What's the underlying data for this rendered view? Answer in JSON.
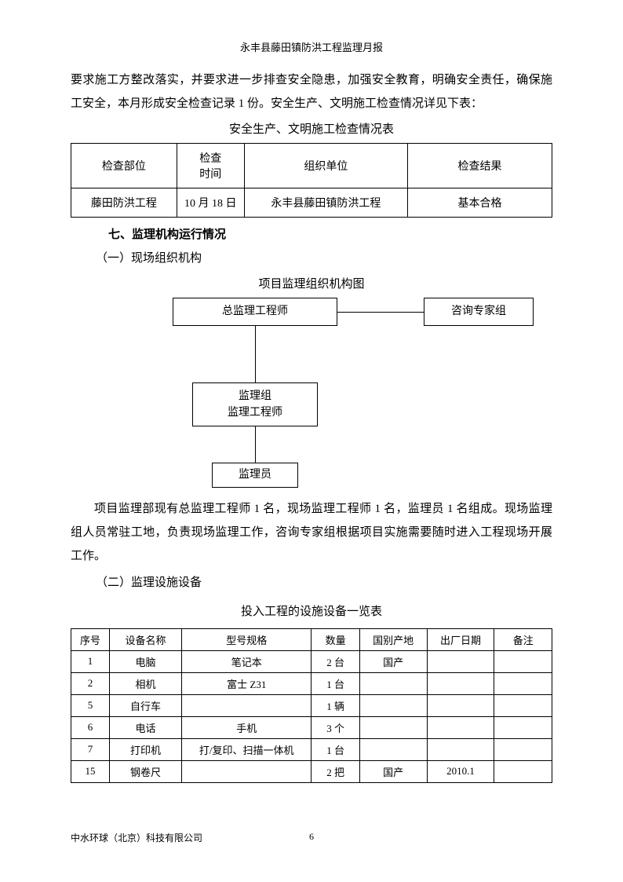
{
  "header": "永丰县藤田镇防洪工程监理月报",
  "intro_para": "要求施工方整改落实，并要求进一步排查安全隐患，加强安全教育，明确安全责任，确保施工安全，本月形成安全检查记录 1 份。安全生产、文明施工检查情况详见下表：",
  "inspection_table": {
    "title": "安全生产、文明施工检查情况表",
    "headers": [
      "检查部位",
      "检查\n时间",
      "组织单位",
      "检查结果"
    ],
    "row": [
      "藤田防洪工程",
      "10 月 18 日",
      "永丰县藤田镇防洪工程",
      "基本合格"
    ],
    "col_widths": [
      "22%",
      "14%",
      "34%",
      "30%"
    ]
  },
  "section7": {
    "heading": "七、监理机构运行情况",
    "sub1": "（一）现场组织机构",
    "sub2": "（二）监理设施设备"
  },
  "org_chart": {
    "title": "项目监理组织机构图",
    "nodes": {
      "chief": "总监理工程师",
      "expert": "咨询专家组",
      "group_l1": "监理组",
      "group_l2": "监理工程师",
      "staff": "监理员"
    }
  },
  "org_para": "项目监理部现有总监理工程师 1 名，现场监理工程师 1 名，监理员 1 名组成。现场监理组人员常驻工地，负责现场监理工作，咨询专家组根据项目实施需要随时进入工程现场开展工作。",
  "equipment_table": {
    "title": "投入工程的设施设备一览表",
    "headers": [
      "序号",
      "设备名称",
      "型号规格",
      "数量",
      "国别产地",
      "出厂日期",
      "备注"
    ],
    "rows": [
      [
        "1",
        "电脑",
        "笔记本",
        "2 台",
        "国产",
        "",
        ""
      ],
      [
        "2",
        "相机",
        "富士 Z31",
        "1 台",
        "",
        "",
        ""
      ],
      [
        "5",
        "自行车",
        "",
        "1 辆",
        "",
        "",
        ""
      ],
      [
        "6",
        "电话",
        "手机",
        "3 个",
        "",
        "",
        ""
      ],
      [
        "7",
        "打印机",
        "打/复印、扫描一体机",
        "1 台",
        "",
        "",
        ""
      ],
      [
        "15",
        "钢卷尺",
        "",
        "2 把",
        "国产",
        "2010.1",
        ""
      ]
    ],
    "col_widths": [
      "8%",
      "15%",
      "27%",
      "10%",
      "14%",
      "14%",
      "12%"
    ]
  },
  "footer": {
    "company": "中水环球（北京）科技有限公司",
    "page": "6"
  }
}
